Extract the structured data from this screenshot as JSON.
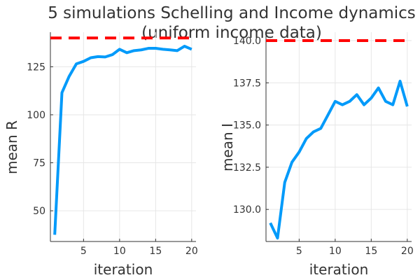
{
  "title_line1": "5 simulations Schelling and Income dynamics",
  "title_line2": "(uniform income data)",
  "chart_data": [
    {
      "type": "line",
      "xlabel": "iteration",
      "ylabel": "mean R",
      "xlim": [
        0.4,
        20.6
      ],
      "ylim": [
        34,
        143
      ],
      "xticks": [
        5,
        10,
        15,
        20
      ],
      "yticks": [
        50,
        75,
        100,
        125
      ],
      "ytick_labels": [
        "50",
        "75",
        "100",
        "125"
      ],
      "grid": true,
      "series": [
        {
          "color": "#009AFA",
          "style": "solid",
          "x": [
            1,
            2,
            3,
            4,
            5,
            6,
            7,
            8,
            9,
            10,
            11,
            12,
            13,
            14,
            15,
            16,
            17,
            18,
            19,
            20
          ],
          "values": [
            37.5,
            111.5,
            120,
            126.5,
            127.8,
            129.7,
            130.3,
            130.1,
            131.3,
            134.1,
            132.3,
            133.4,
            133.8,
            134.6,
            134.6,
            134.1,
            133.8,
            133.4,
            135.7,
            134.1
          ]
        },
        {
          "color": "#FF0000",
          "style": "dashed",
          "x": [
            0.4,
            20.6
          ],
          "values": [
            140,
            140
          ]
        }
      ]
    },
    {
      "type": "line",
      "xlabel": "iteration",
      "ylabel": "mean I",
      "xlim": [
        0.4,
        20.6
      ],
      "ylim": [
        128.1,
        140.5
      ],
      "xticks": [
        5,
        10,
        15,
        20
      ],
      "yticks": [
        130,
        132.5,
        135,
        137.5,
        140
      ],
      "ytick_labels": [
        "130.0",
        "132.5",
        "135.0",
        "137.5",
        "140.0"
      ],
      "grid": true,
      "series": [
        {
          "color": "#009AFA",
          "style": "solid",
          "x": [
            1,
            2,
            3,
            4,
            5,
            6,
            7,
            8,
            9,
            10,
            11,
            12,
            13,
            14,
            15,
            16,
            17,
            18,
            19,
            20
          ],
          "values": [
            129.2,
            128.3,
            131.6,
            132.8,
            133.4,
            134.2,
            134.6,
            134.8,
            135.6,
            136.4,
            136.2,
            136.4,
            136.8,
            136.2,
            136.6,
            137.2,
            136.4,
            136.2,
            137.6,
            136.1
          ]
        },
        {
          "color": "#FF0000",
          "style": "dashed",
          "x": [
            0.4,
            20.6
          ],
          "values": [
            140,
            140
          ]
        }
      ]
    }
  ]
}
